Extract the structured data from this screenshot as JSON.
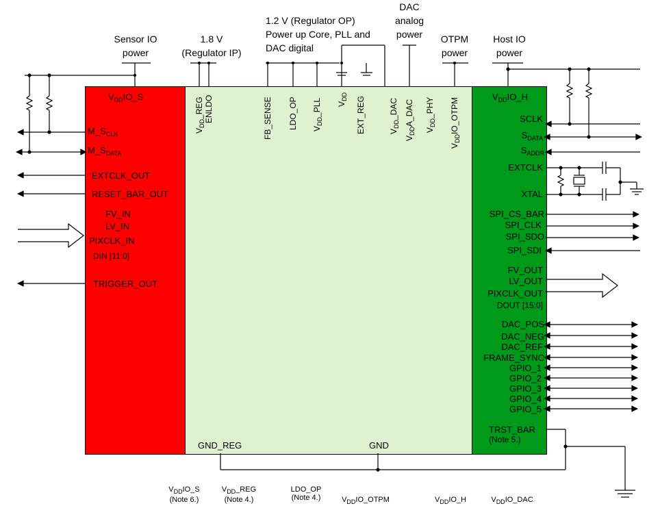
{
  "colors": {
    "left_block": "#ff0000",
    "center_block": "#dff2cf",
    "right_block": "#009a1a",
    "lines": "#000000"
  },
  "top_labels": {
    "sensor_io": [
      "Sensor IO",
      "power"
    ],
    "reg_ip": [
      "1.8 V",
      "(Regulator IP)"
    ],
    "reg_op": [
      "1.2 V (Regulator OP)",
      "Power up Core, PLL and",
      "DAC digital"
    ],
    "dac_analog": [
      "DAC",
      "analog",
      "power"
    ],
    "otpm": [
      "OTPM",
      "power"
    ],
    "host_io": [
      "Host IO",
      "power"
    ]
  },
  "left_block": {
    "vdd_io_s": {
      "v": "V",
      "sub": "DD",
      "rest": "IO_S"
    },
    "m_sclk": {
      "main": "M_S",
      "sub": "CLK"
    },
    "m_sdata": {
      "main": "M_S",
      "sub": "DATA"
    },
    "pins": {
      "extclk_out": "EXTCLK_OUT",
      "reset_bar_out": "RESET_BAR_OUT",
      "fv_in": "FV_IN",
      "lv_in": "LV_IN",
      "pixclk_in": "PIXCLK_IN",
      "din": "DIN [11:0]",
      "trigger_out": "TRIGGER_OUT"
    }
  },
  "center_block": {
    "vertical_pins": {
      "vdd_reg": {
        "v": "V",
        "sub": "DD",
        "rest": "_REG"
      },
      "enldo": "ENLDO",
      "fb_sense": "FB_SENSE",
      "ldo_op": "LDO_OP",
      "vdd_pll": {
        "v": "V",
        "sub": "DD",
        "rest": "_PLL"
      },
      "vdd": {
        "v": "V",
        "sub": "DD",
        "rest": ""
      },
      "ext_reg": "EXT_REG",
      "vdd_dac": {
        "v": "V",
        "sub": "DD",
        "rest": "_DAC"
      },
      "vdda_dac": {
        "v": "V",
        "sub": "DD",
        "rest": "A_DAC"
      },
      "vdd_phy": {
        "v": "V",
        "sub": "DD",
        "rest": "_PHY"
      },
      "vddio_otpm": {
        "v": "V",
        "sub": "DD",
        "rest": "IO_OTPM"
      }
    },
    "gnd_reg": "GND_REG",
    "gnd": "GND"
  },
  "right_block": {
    "vdd_io_h": {
      "v": "V",
      "sub": "DD",
      "rest": "IO_H"
    },
    "sclk": "SCLK",
    "sdata": {
      "main": "S",
      "sub": "DATA"
    },
    "saddr": {
      "main": "S",
      "sub": "ADDR"
    },
    "extclk": "EXTCLK",
    "xtal": "XTAL",
    "spi_cs_bar": "SPI_CS_BAR",
    "spi_clk": "SPI_CLK",
    "spi_sdo": "SPI_SDO",
    "spi_sdi": "SPI_SDI",
    "fv_out": "FV_OUT",
    "lv_out": "LV_OUT",
    "pixclk_out": "PIXCLK_OUT",
    "dout": "DOUT [15:0]",
    "dac_pos": "DAC_POS",
    "dac_neg": "DAC_NEG",
    "dac_ref": "DAC_REF",
    "frame_sync": "FRAME_SYNC",
    "gpio_1": "GPIO_1",
    "gpio_2": "GPIO_2",
    "gpio_3": "GPIO_3",
    "gpio_4": "GPIO_4",
    "gpio_5": "GPIO_5",
    "trst_bar": "TRST_BAR",
    "trst_note": "(Note 5.)"
  },
  "bottom_notes": {
    "n1": {
      "v": "V",
      "sub": "DD",
      "rest": "IO_S",
      "note": "(Note 6.)"
    },
    "n2": {
      "v": "V",
      "sub": "DD",
      "rest": "_REG",
      "note": "(Note 4.)"
    },
    "n3": {
      "main": "LDO_OP",
      "note": "(Note 4.)"
    },
    "n4": {
      "v": "V",
      "sub": "DD",
      "rest": "IO_OTPM"
    },
    "n5": {
      "v": "V",
      "sub": "DD",
      "rest": "IO_H"
    },
    "n6": {
      "v": "V",
      "sub": "DD",
      "rest": "IO_DAC"
    }
  }
}
